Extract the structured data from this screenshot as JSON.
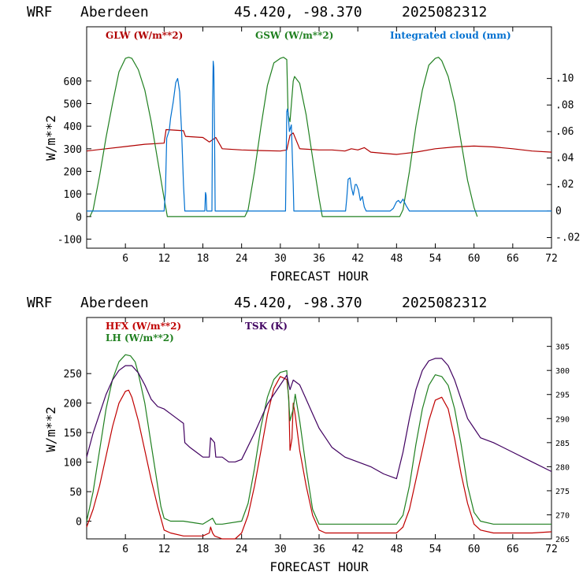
{
  "colors": {
    "glw": "#b00000",
    "gsw": "#208020",
    "cloud": "#0070d0",
    "hfx": "#c00000",
    "lh": "#208020",
    "tsk": "#400060",
    "axis": "#000000"
  },
  "chart_data": [
    {
      "type": "line",
      "header": {
        "model": "WRF",
        "station": "Aberdeen",
        "coords": "45.420, -98.370",
        "run": "2025082312"
      },
      "xlabel": "FORECAST HOUR",
      "ylabel": "W/m**2",
      "xlim": [
        0,
        72
      ],
      "ylim": [
        -140,
        840
      ],
      "y2lim": [
        -0.028,
        0.139
      ],
      "xticks": [
        6,
        12,
        18,
        24,
        30,
        36,
        42,
        48,
        54,
        60,
        66,
        72
      ],
      "yticks": [
        -100,
        0,
        100,
        200,
        300,
        400,
        500,
        600
      ],
      "y2ticks": [
        "-.02",
        "0",
        ".02",
        ".04",
        ".06",
        ".08",
        ".10"
      ],
      "y2tick_values": [
        -0.02,
        0,
        0.02,
        0.04,
        0.06,
        0.08,
        0.1
      ],
      "legend": [
        {
          "label": "GLW (W/m**2)",
          "key": "glw"
        },
        {
          "label": "GSW (W/m**2)",
          "key": "gsw"
        },
        {
          "label": "Integrated cloud (mm)",
          "key": "cloud"
        }
      ],
      "series": [
        {
          "name": "GLW (W/m**2)",
          "key": "glw",
          "axis": "left",
          "x": [
            0,
            3,
            6,
            9,
            12,
            12.3,
            15,
            15.3,
            18,
            19,
            20,
            21,
            24,
            27,
            30,
            31,
            31.5,
            32,
            33,
            36,
            38,
            40,
            41,
            42,
            43,
            44,
            46,
            48,
            51,
            54,
            57,
            60,
            63,
            66,
            69,
            72
          ],
          "y": [
            290,
            300,
            310,
            320,
            325,
            385,
            380,
            355,
            350,
            330,
            350,
            300,
            295,
            292,
            290,
            295,
            360,
            370,
            300,
            295,
            295,
            290,
            300,
            295,
            305,
            285,
            280,
            275,
            285,
            300,
            308,
            312,
            308,
            300,
            290,
            285
          ]
        },
        {
          "name": "GSW (W/m**2)",
          "key": "gsw",
          "axis": "left",
          "x": [
            0.5,
            1,
            2,
            3,
            4,
            5,
            6,
            6.5,
            7,
            8,
            9,
            10,
            11,
            12,
            12.5,
            24.5,
            25,
            26,
            27,
            28,
            29,
            30,
            30.5,
            31,
            31.2,
            31.5,
            32,
            32.2,
            33,
            34,
            35,
            36,
            36.5,
            48.5,
            49,
            50,
            51,
            52,
            53,
            54,
            54.5,
            55,
            56,
            57,
            58,
            59,
            60,
            60.5
          ],
          "y": [
            0,
            30,
            180,
            350,
            500,
            640,
            700,
            705,
            700,
            650,
            560,
            420,
            250,
            80,
            0,
            0,
            30,
            200,
            400,
            580,
            680,
            700,
            705,
            695,
            450,
            420,
            600,
            620,
            590,
            450,
            260,
            80,
            0,
            0,
            30,
            200,
            400,
            560,
            670,
            700,
            705,
            690,
            620,
            500,
            330,
            160,
            40,
            0
          ]
        },
        {
          "name": "Integrated cloud (mm)",
          "key": "cloud",
          "axis": "right",
          "x": [
            0,
            12,
            12.2,
            12.4,
            12.8,
            13,
            13.4,
            13.8,
            14.1,
            14.4,
            14.7,
            15,
            15.2,
            18.3,
            18.4,
            18.5,
            18.6,
            19.4,
            19.5,
            19.6,
            19.7,
            19.8,
            19.9,
            20.1,
            30.8,
            31,
            31.1,
            31.2,
            31.4,
            31.7,
            32,
            32.1,
            40.1,
            40.3,
            40.5,
            40.8,
            41,
            41.3,
            41.6,
            41.8,
            42.1,
            42.4,
            42.7,
            43,
            43.3,
            47,
            47.5,
            48,
            48.3,
            48.6,
            49,
            49.5,
            50,
            72
          ],
          "y": [
            0,
            0,
            0.015,
            0.055,
            0.061,
            0.07,
            0.082,
            0.097,
            0.1,
            0.09,
            0.06,
            0.02,
            0,
            0,
            0.014,
            0.012,
            0,
            0,
            0.08,
            0.113,
            0.108,
            0.06,
            0,
            0,
            0,
            0.075,
            0.077,
            0.074,
            0.06,
            0.065,
            0.02,
            0,
            0,
            0.01,
            0.024,
            0.025,
            0.018,
            0.012,
            0.02,
            0.02,
            0.016,
            0.008,
            0.011,
            0.003,
            0,
            0,
            0.002,
            0.007,
            0.008,
            0.006,
            0.009,
            0.004,
            0,
            0
          ]
        }
      ]
    },
    {
      "type": "line",
      "header": {
        "model": "WRF",
        "station": "Aberdeen",
        "coords": "45.420, -98.370",
        "run": "2025082312"
      },
      "xlabel": "FORECAST HOUR",
      "ylabel": "W/m**2",
      "xlim": [
        0,
        72
      ],
      "ylim": [
        -30,
        345
      ],
      "y2lim": [
        265,
        311
      ],
      "xticks": [
        6,
        12,
        18,
        24,
        30,
        36,
        42,
        48,
        54,
        60,
        66,
        72
      ],
      "yticks": [
        0,
        50,
        100,
        150,
        200,
        250
      ],
      "y2ticks": [
        "265",
        "270",
        "275",
        "280",
        "285",
        "290",
        "295",
        "300",
        "305"
      ],
      "y2tick_values": [
        265,
        270,
        275,
        280,
        285,
        290,
        295,
        300,
        305
      ],
      "legend": [
        {
          "label": "HFX (W/m**2)",
          "key": "hfx"
        },
        {
          "label": "LH  (W/m**2)",
          "key": "lh"
        },
        {
          "label": "TSK (K)",
          "key": "tsk"
        }
      ],
      "series": [
        {
          "name": "HFX (W/m**2)",
          "key": "hfx",
          "axis": "left",
          "x": [
            0,
            1,
            2,
            3,
            4,
            5,
            6,
            6.5,
            7,
            8,
            9,
            10,
            11,
            11.5,
            12,
            13,
            15,
            18,
            19,
            19.2,
            19.5,
            19.8,
            21,
            23,
            24,
            25,
            26,
            27,
            28,
            29,
            30,
            31,
            31.3,
            31.5,
            31.8,
            32,
            32.3,
            33,
            34,
            35,
            36,
            37,
            40,
            44,
            48,
            49,
            50,
            51,
            52,
            53,
            54,
            55,
            56,
            57,
            58,
            59,
            60,
            61,
            63,
            66,
            69,
            72
          ],
          "y": [
            -10,
            20,
            60,
            110,
            160,
            200,
            220,
            222,
            210,
            170,
            120,
            70,
            25,
            5,
            -15,
            -20,
            -25,
            -25,
            -20,
            -10,
            -20,
            -25,
            -30,
            -30,
            -20,
            10,
            60,
            120,
            180,
            225,
            245,
            240,
            210,
            120,
            140,
            200,
            180,
            120,
            60,
            10,
            -15,
            -20,
            -20,
            -20,
            -20,
            -10,
            20,
            70,
            120,
            170,
            205,
            210,
            190,
            140,
            80,
            30,
            -5,
            -15,
            -20,
            -20,
            -20,
            -18
          ]
        },
        {
          "name": "LH  (W/m**2)",
          "key": "lh",
          "axis": "left",
          "x": [
            0,
            1,
            2,
            3,
            4,
            5,
            6,
            6.8,
            7.5,
            8,
            9,
            10,
            11,
            11.5,
            12,
            13,
            15,
            18,
            19.5,
            20,
            21,
            24,
            25,
            26,
            27,
            28,
            29,
            30,
            31,
            31.2,
            31.5,
            32,
            32.3,
            33,
            34,
            35,
            36,
            40,
            44,
            48,
            49,
            50,
            51,
            52,
            53,
            54,
            55,
            56,
            57,
            58,
            59,
            60,
            61,
            63,
            66,
            69,
            72
          ],
          "y": [
            0,
            50,
            120,
            190,
            240,
            270,
            282,
            280,
            270,
            250,
            200,
            130,
            60,
            25,
            5,
            0,
            0,
            -5,
            5,
            -5,
            -5,
            0,
            30,
            90,
            160,
            210,
            240,
            252,
            255,
            220,
            170,
            190,
            215,
            170,
            90,
            20,
            -5,
            -5,
            -5,
            -5,
            10,
            60,
            130,
            190,
            230,
            248,
            245,
            230,
            190,
            130,
            60,
            15,
            0,
            -5,
            -5,
            -5,
            -5
          ]
        },
        {
          "name": "TSK (K)",
          "key": "tsk",
          "axis": "right",
          "x": [
            0,
            1,
            2,
            3,
            4,
            5,
            6,
            7,
            8,
            9,
            10,
            11,
            12,
            13,
            14,
            15,
            15.2,
            16,
            17,
            18,
            19,
            19.2,
            19.8,
            20,
            21,
            22,
            23,
            24,
            26,
            28,
            30,
            31,
            31.5,
            32,
            33,
            34,
            35,
            36,
            37,
            38,
            39,
            40,
            42,
            44,
            46,
            48,
            49,
            50,
            51,
            52,
            53,
            54,
            55,
            56,
            57,
            58,
            59,
            60,
            61,
            63,
            66,
            69,
            72
          ],
          "y": [
            282,
            287,
            291,
            295,
            298,
            300,
            301,
            301,
            299.5,
            297,
            294,
            292.5,
            292,
            291,
            290,
            289,
            285,
            284,
            283,
            282,
            282,
            286,
            285,
            282,
            282,
            281,
            281,
            281.5,
            287,
            293,
            297,
            299,
            296,
            298,
            297,
            294,
            291,
            288,
            286,
            284,
            283,
            282,
            281,
            280,
            278.5,
            277.5,
            283,
            290,
            296,
            300,
            302,
            302.5,
            302.5,
            301,
            298,
            294,
            290,
            288,
            286,
            285,
            283,
            281,
            279
          ]
        }
      ]
    }
  ]
}
